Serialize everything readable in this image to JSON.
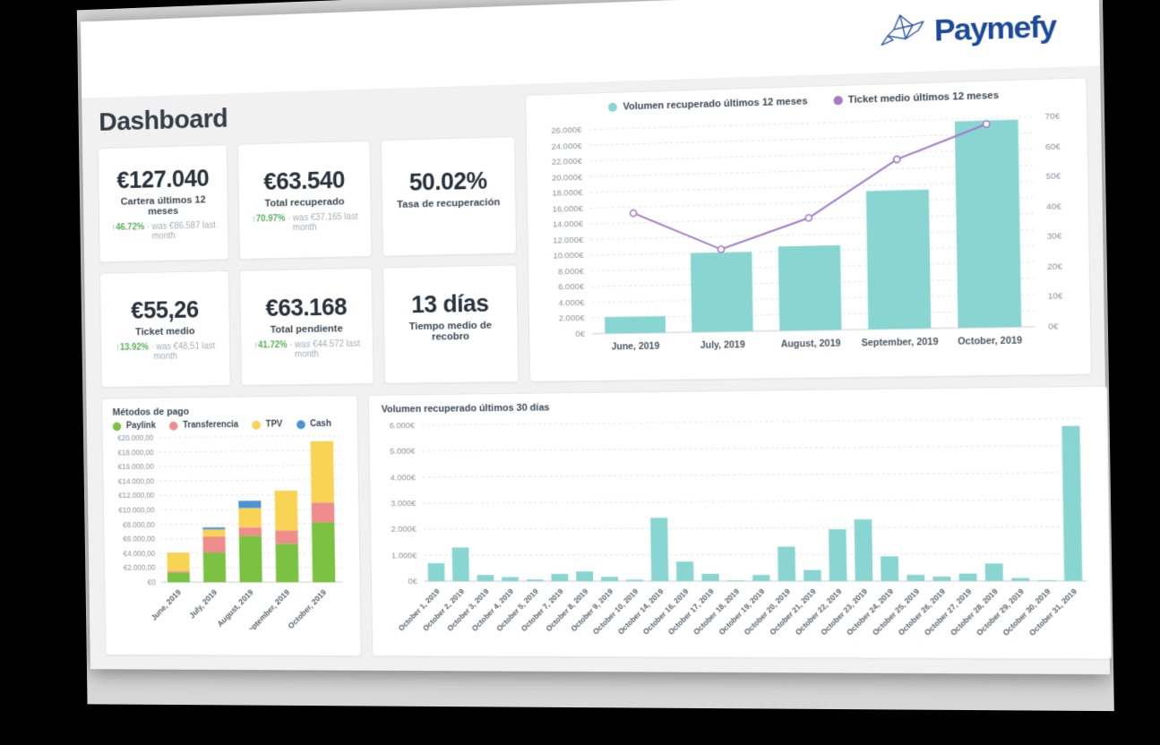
{
  "brand": {
    "name": "Paymefy",
    "color": "#1b4a9b"
  },
  "page": {
    "title": "Dashboard"
  },
  "kpis": [
    {
      "value": "€127.040",
      "label": "Cartera últimos 12 meses",
      "delta": "↑46.72%",
      "delta_note": "· was €86.587 last month"
    },
    {
      "value": "€63.540",
      "label": "Total recuperado",
      "delta": "↑70.97%",
      "delta_note": "· was €37.165 last month"
    },
    {
      "value": "50.02%",
      "label": "Tasa de recuperación",
      "delta": "",
      "delta_note": ""
    },
    {
      "value": "€55,26",
      "label": "Ticket medio",
      "delta": "↑13.92%",
      "delta_note": "· was €48,51 last month"
    },
    {
      "value": "€63.168",
      "label": "Total pendiente",
      "delta": "↑41.72%",
      "delta_note": "· was €44.572 last month"
    },
    {
      "value": "13 días",
      "label": "Tiempo medio de recobro",
      "delta": "",
      "delta_note": ""
    }
  ],
  "chart_data": [
    {
      "id": "recovered-12-months",
      "type": "bar+line",
      "legend_position": "top",
      "grid": "dashed-horizontal",
      "categories": [
        "June, 2019",
        "July, 2019",
        "August, 2019",
        "September, 2019",
        "October, 2019"
      ],
      "series": [
        {
          "name": "Volumen recuperado últimos 12 meses",
          "chart": "bar",
          "axis": "left",
          "color": "#89d5d2",
          "values": [
            2100,
            10000,
            10600,
            17300,
            25700
          ]
        },
        {
          "name": "Ticket medio últimos 12 meses",
          "chart": "line",
          "axis": "right",
          "color": "#a27cc7",
          "values": [
            41,
            28,
            38,
            57,
            68
          ]
        }
      ],
      "left_axis": {
        "unit": "€",
        "step": 2000,
        "scale_max": 26000,
        "ticks": [
          "0€",
          "2.000€",
          "4.000€",
          "6.000€",
          "8.000€",
          "10.000€",
          "12.000€",
          "14.000€",
          "16.000€",
          "18.000€",
          "20.000€",
          "22.000€",
          "24.000€",
          "26.000€"
        ]
      },
      "right_axis": {
        "unit": "€",
        "step": 10,
        "scale_max": 70,
        "ticks": [
          "0€",
          "10€",
          "20€",
          "30€",
          "40€",
          "50€",
          "60€",
          "70€"
        ]
      }
    },
    {
      "id": "payment-methods",
      "title": "Métodos de pago",
      "type": "stacked-bar",
      "legend_position": "top-left",
      "grid": "dashed-horizontal",
      "categories": [
        "June, 2019",
        "July, 2019",
        "August, 2019",
        "September, 2019",
        "October, 2019"
      ],
      "series": [
        {
          "name": "Paylink",
          "color": "#7cc242",
          "values": [
            1500,
            4500,
            7000,
            5800,
            9000
          ]
        },
        {
          "name": "Transferencia",
          "color": "#ef8d8d",
          "values": [
            200,
            2400,
            1300,
            2000,
            3000
          ]
        },
        {
          "name": "TPV",
          "color": "#f8d354",
          "values": [
            2800,
            1100,
            2900,
            6000,
            9200
          ]
        },
        {
          "name": "Cash",
          "color": "#4b93d8",
          "values": [
            0,
            300,
            1100,
            0,
            0
          ]
        }
      ],
      "y_axis": {
        "unit": "€",
        "step": 2000,
        "scale_max": 22000,
        "ticks": [
          "€0",
          "€2.000,00",
          "€4.000,00",
          "€6.000,00",
          "€8.000,00",
          "€10.000,00",
          "€12.000,00",
          "€14.000,00",
          "€16.000,00",
          "€18.000,00",
          "€20.000,00"
        ]
      }
    },
    {
      "id": "recovered-30-days",
      "title": "Volumen recuperado últimos 30 días",
      "type": "bar",
      "color": "#89d5d2",
      "grid": "dashed-horizontal",
      "categories": [
        "October 1, 2019",
        "October 2, 2019",
        "October 3, 2019",
        "October 4, 2019",
        "October 5, 2019",
        "October 7, 2019",
        "October 8, 2019",
        "October 9, 2019",
        "October 10, 2019",
        "October 14, 2019",
        "October 16, 2019",
        "October 17, 2019",
        "October 18, 2019",
        "October 19, 2019",
        "October 20, 2019",
        "October 21, 2019",
        "October 22, 2019",
        "October 23, 2019",
        "October 24, 2019",
        "October 25, 2019",
        "October 26, 2019",
        "October 27, 2019",
        "October 28, 2019",
        "October 29, 2019",
        "October 30, 2019",
        "October 31, 2019"
      ],
      "values": [
        750,
        1400,
        260,
        170,
        70,
        300,
        400,
        180,
        60,
        2600,
        800,
        300,
        30,
        250,
        1400,
        450,
        2100,
        2500,
        1000,
        250,
        180,
        300,
        700,
        120,
        30,
        6200
      ],
      "y_axis": {
        "unit": "€",
        "step": 1000,
        "scale_max": 6500,
        "ticks": [
          "0€",
          "1.000€",
          "2.000€",
          "3.000€",
          "4.000€",
          "5.000€",
          "6.000€"
        ]
      }
    }
  ]
}
